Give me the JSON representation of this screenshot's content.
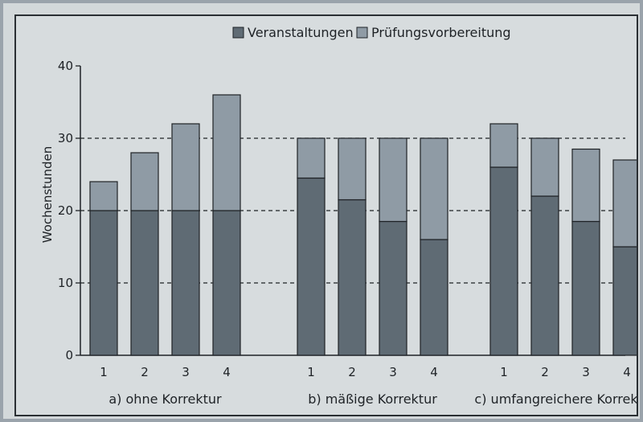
{
  "chart_data": {
    "type": "bar",
    "stacked": true,
    "ylabel": "Wochenstunden",
    "ylim": [
      0,
      40
    ],
    "yticks": [
      0,
      10,
      20,
      30,
      40
    ],
    "grid": "horizontal dashed at 10, 20, 30",
    "legend_position": "top",
    "groups": [
      {
        "label": "a) ohne Korrektur",
        "categories": [
          "1",
          "2",
          "3",
          "4"
        ],
        "veranstaltungen": [
          20,
          20,
          20,
          20
        ],
        "pruefungsvorbereitung": [
          4,
          8,
          12,
          16
        ]
      },
      {
        "label": "b) mäßige Korrektur",
        "categories": [
          "1",
          "2",
          "3",
          "4"
        ],
        "veranstaltungen": [
          24.5,
          21.5,
          18.5,
          16
        ],
        "pruefungsvorbereitung": [
          5.5,
          8.5,
          11.5,
          14
        ]
      },
      {
        "label": "c) umfangreichere Korrektur",
        "categories": [
          "1",
          "2",
          "3",
          "4"
        ],
        "veranstaltungen": [
          26,
          22,
          18.5,
          15
        ],
        "pruefungsvorbereitung": [
          6,
          8,
          10,
          12
        ]
      }
    ],
    "series": [
      {
        "name": "Veranstaltungen",
        "color": "#5f6b74"
      },
      {
        "name": "Prüfungsvorbereitung",
        "color": "#8f9ba5"
      }
    ]
  }
}
